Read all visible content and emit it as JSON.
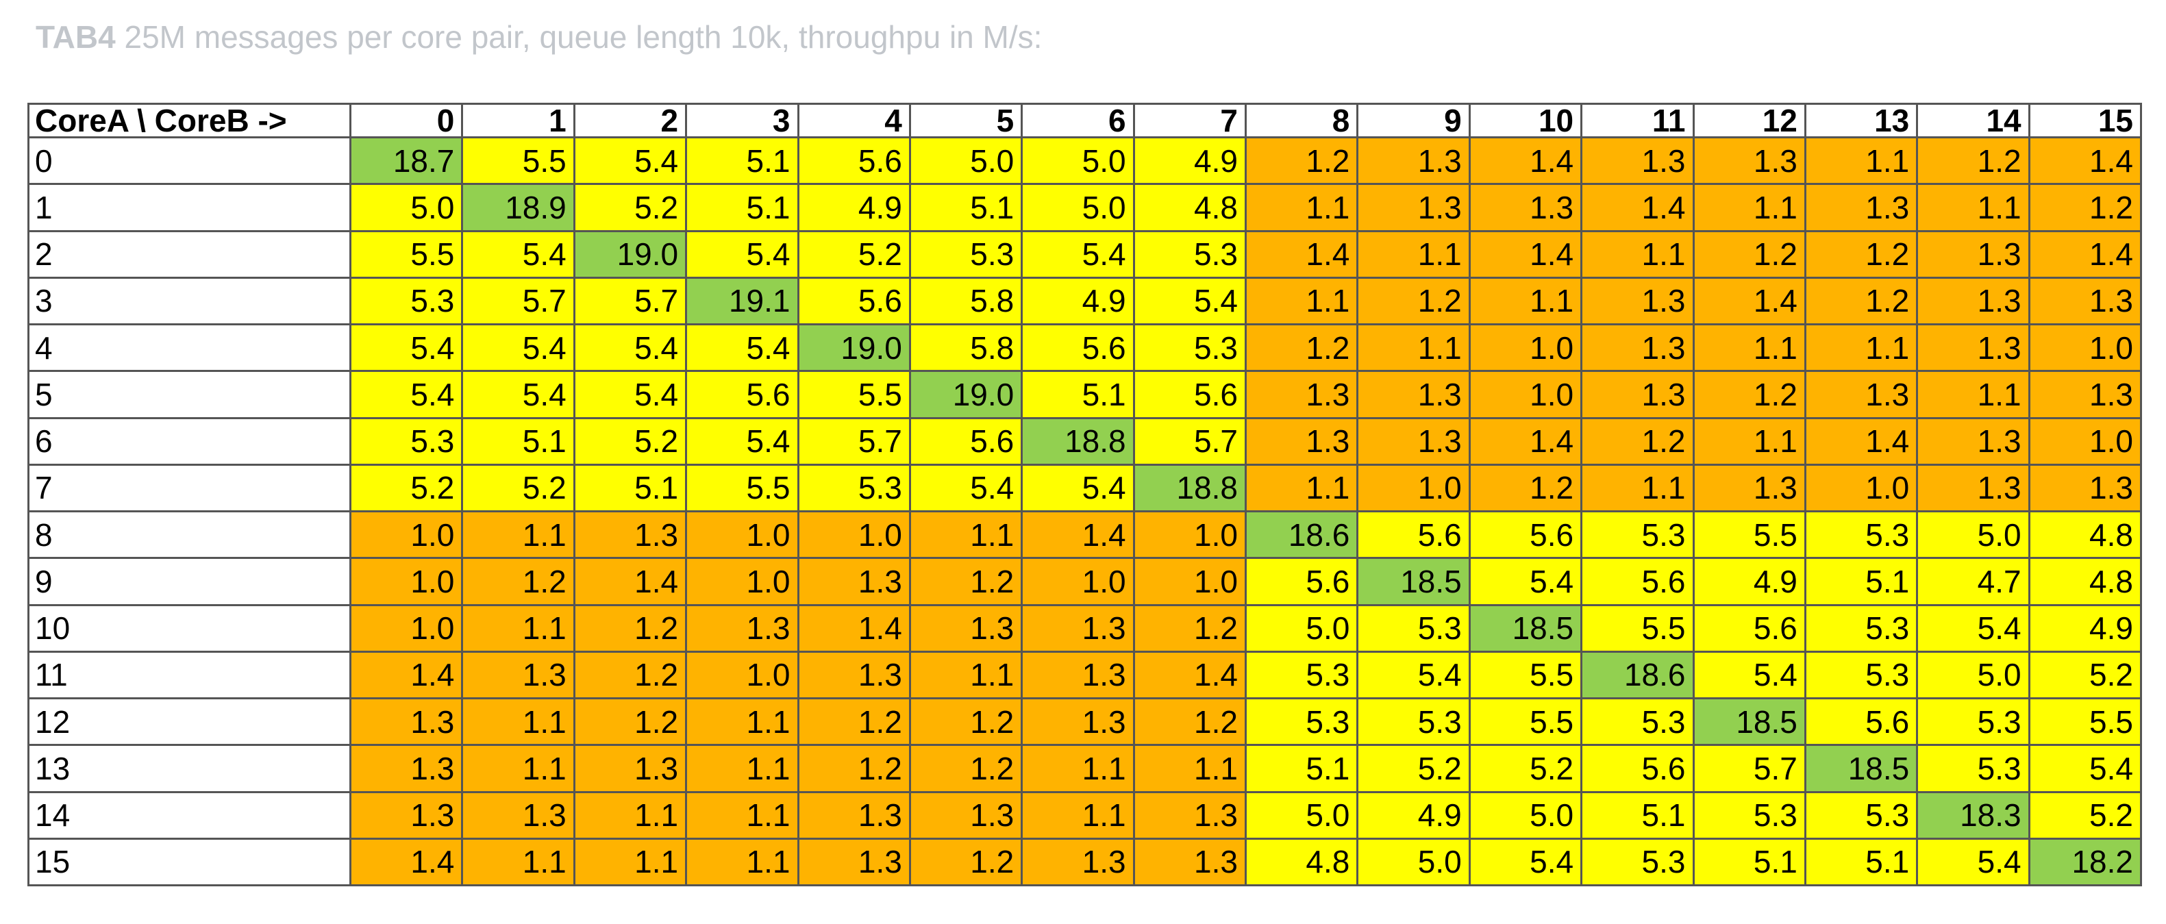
{
  "caption": {
    "tag": "TAB4",
    "text": " 25M messages per core pair, queue length 10k, throughpu in M/s:"
  },
  "colors": {
    "high": "#92d050",
    "mid": "#ffff00",
    "low": "#ffb300",
    "border": "#555555",
    "caption": "#c2c6cb"
  },
  "chart_data": {
    "type": "table",
    "corner_label": "CoreA \\ CoreB ->",
    "columns": [
      "0",
      "1",
      "2",
      "3",
      "4",
      "5",
      "6",
      "7",
      "8",
      "9",
      "10",
      "11",
      "12",
      "13",
      "14",
      "15"
    ],
    "rows": [
      "0",
      "1",
      "2",
      "3",
      "4",
      "5",
      "6",
      "7",
      "8",
      "9",
      "10",
      "11",
      "12",
      "13",
      "14",
      "15"
    ],
    "values": [
      [
        "18.7",
        "5.5",
        "5.4",
        "5.1",
        "5.6",
        "5.0",
        "5.0",
        "4.9",
        "1.2",
        "1.3",
        "1.4",
        "1.3",
        "1.3",
        "1.1",
        "1.2",
        "1.4"
      ],
      [
        "5.0",
        "18.9",
        "5.2",
        "5.1",
        "4.9",
        "5.1",
        "5.0",
        "4.8",
        "1.1",
        "1.3",
        "1.3",
        "1.4",
        "1.1",
        "1.3",
        "1.1",
        "1.2"
      ],
      [
        "5.5",
        "5.4",
        "19.0",
        "5.4",
        "5.2",
        "5.3",
        "5.4",
        "5.3",
        "1.4",
        "1.1",
        "1.4",
        "1.1",
        "1.2",
        "1.2",
        "1.3",
        "1.4"
      ],
      [
        "5.3",
        "5.7",
        "5.7",
        "19.1",
        "5.6",
        "5.8",
        "4.9",
        "5.4",
        "1.1",
        "1.2",
        "1.1",
        "1.3",
        "1.4",
        "1.2",
        "1.3",
        "1.3"
      ],
      [
        "5.4",
        "5.4",
        "5.4",
        "5.4",
        "19.0",
        "5.8",
        "5.6",
        "5.3",
        "1.2",
        "1.1",
        "1.0",
        "1.3",
        "1.1",
        "1.1",
        "1.3",
        "1.0"
      ],
      [
        "5.4",
        "5.4",
        "5.4",
        "5.6",
        "5.5",
        "19.0",
        "5.1",
        "5.6",
        "1.3",
        "1.3",
        "1.0",
        "1.3",
        "1.2",
        "1.3",
        "1.1",
        "1.3"
      ],
      [
        "5.3",
        "5.1",
        "5.2",
        "5.4",
        "5.7",
        "5.6",
        "18.8",
        "5.7",
        "1.3",
        "1.3",
        "1.4",
        "1.2",
        "1.1",
        "1.4",
        "1.3",
        "1.0"
      ],
      [
        "5.2",
        "5.2",
        "5.1",
        "5.5",
        "5.3",
        "5.4",
        "5.4",
        "18.8",
        "1.1",
        "1.0",
        "1.2",
        "1.1",
        "1.3",
        "1.0",
        "1.3",
        "1.3"
      ],
      [
        "1.0",
        "1.1",
        "1.3",
        "1.0",
        "1.0",
        "1.1",
        "1.4",
        "1.0",
        "18.6",
        "5.6",
        "5.6",
        "5.3",
        "5.5",
        "5.3",
        "5.0",
        "4.8"
      ],
      [
        "1.0",
        "1.2",
        "1.4",
        "1.0",
        "1.3",
        "1.2",
        "1.0",
        "1.0",
        "5.6",
        "18.5",
        "5.4",
        "5.6",
        "4.9",
        "5.1",
        "4.7",
        "4.8"
      ],
      [
        "1.0",
        "1.1",
        "1.2",
        "1.3",
        "1.4",
        "1.3",
        "1.3",
        "1.2",
        "5.0",
        "5.3",
        "18.5",
        "5.5",
        "5.6",
        "5.3",
        "5.4",
        "4.9"
      ],
      [
        "1.4",
        "1.3",
        "1.2",
        "1.0",
        "1.3",
        "1.1",
        "1.3",
        "1.4",
        "5.3",
        "5.4",
        "5.5",
        "18.6",
        "5.4",
        "5.3",
        "5.0",
        "5.2"
      ],
      [
        "1.3",
        "1.1",
        "1.2",
        "1.1",
        "1.2",
        "1.2",
        "1.3",
        "1.2",
        "5.3",
        "5.3",
        "5.5",
        "5.3",
        "18.5",
        "5.6",
        "5.3",
        "5.5"
      ],
      [
        "1.3",
        "1.1",
        "1.3",
        "1.1",
        "1.2",
        "1.2",
        "1.1",
        "1.1",
        "5.1",
        "5.2",
        "5.2",
        "5.6",
        "5.7",
        "18.5",
        "5.3",
        "5.4"
      ],
      [
        "1.3",
        "1.3",
        "1.1",
        "1.1",
        "1.3",
        "1.3",
        "1.1",
        "1.3",
        "5.0",
        "4.9",
        "5.0",
        "5.1",
        "5.3",
        "5.3",
        "18.3",
        "5.2"
      ],
      [
        "1.4",
        "1.1",
        "1.1",
        "1.1",
        "1.3",
        "1.2",
        "1.3",
        "1.3",
        "4.8",
        "5.0",
        "5.4",
        "5.3",
        "5.1",
        "5.1",
        "5.4",
        "18.2"
      ]
    ]
  }
}
